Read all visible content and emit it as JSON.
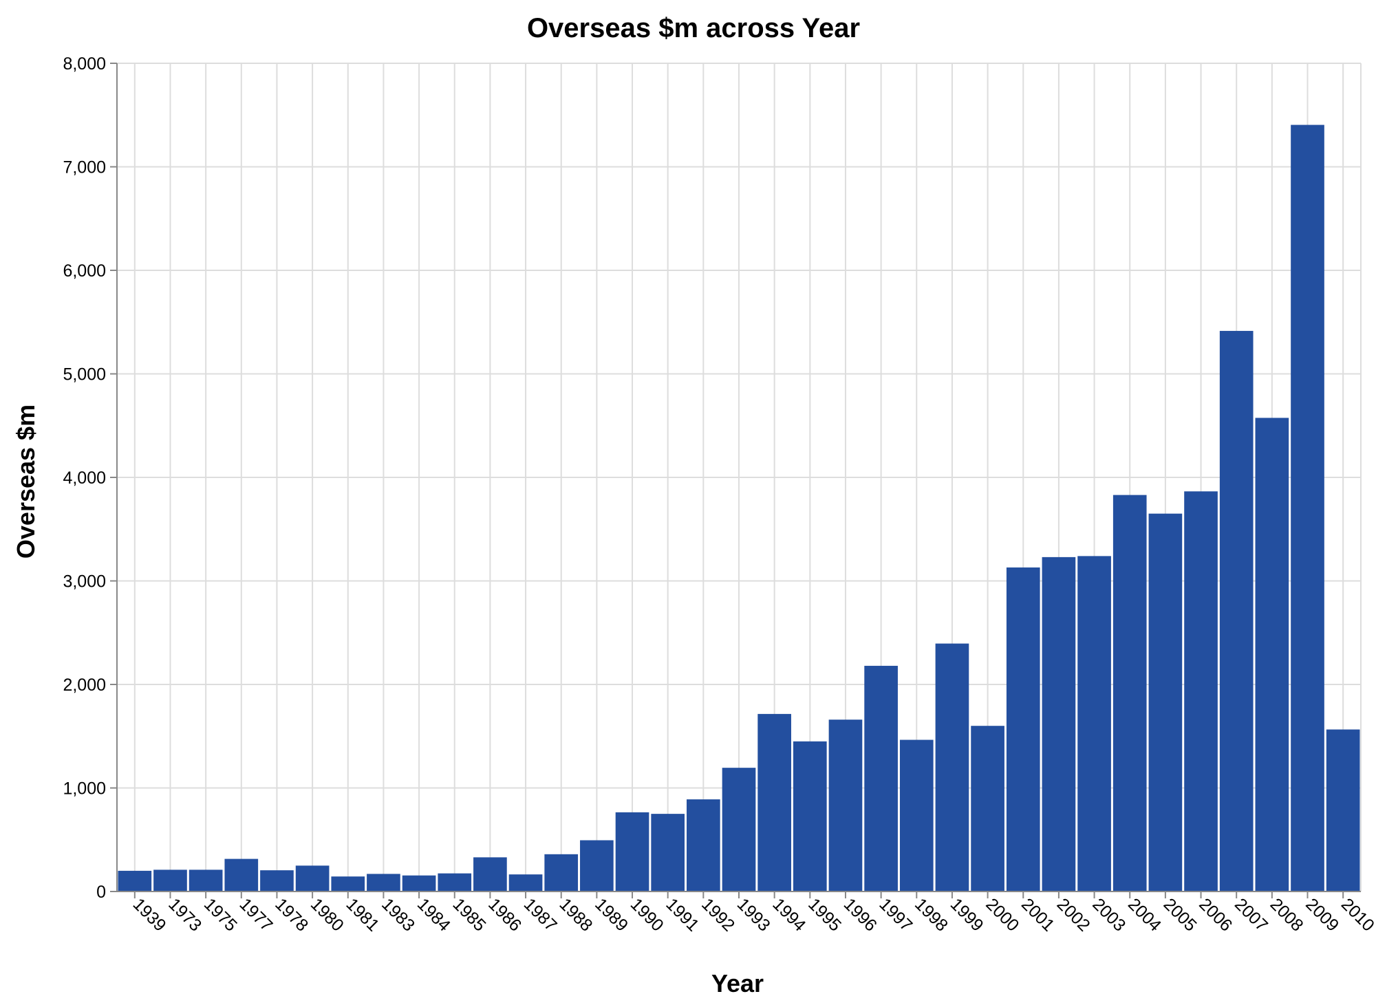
{
  "chart_data": {
    "type": "bar",
    "title": "Overseas $m across Year",
    "xlabel": "Year",
    "ylabel": "Overseas $m",
    "ylim": [
      0,
      8000
    ],
    "yticks": [
      "0",
      "1,000",
      "2,000",
      "3,000",
      "4,000",
      "5,000",
      "6,000",
      "7,000",
      "8,000"
    ],
    "grid": true,
    "bar_color": "#234f9f",
    "categories": [
      "1939",
      "1973",
      "1975",
      "1977",
      "1978",
      "1980",
      "1981",
      "1983",
      "1984",
      "1985",
      "1986",
      "1987",
      "1988",
      "1989",
      "1990",
      "1991",
      "1992",
      "1993",
      "1994",
      "1995",
      "1996",
      "1997",
      "1998",
      "1999",
      "2000",
      "2001",
      "2002",
      "2003",
      "2004",
      "2005",
      "2006",
      "2007",
      "2008",
      "2009",
      "2010"
    ],
    "values": [
      200,
      210,
      210,
      315,
      205,
      250,
      145,
      170,
      155,
      175,
      330,
      165,
      360,
      495,
      765,
      750,
      890,
      1195,
      1715,
      1450,
      1660,
      2180,
      1465,
      2395,
      1600,
      3130,
      3230,
      3240,
      3830,
      3650,
      3865,
      5415,
      4575,
      7405,
      1565
    ]
  }
}
